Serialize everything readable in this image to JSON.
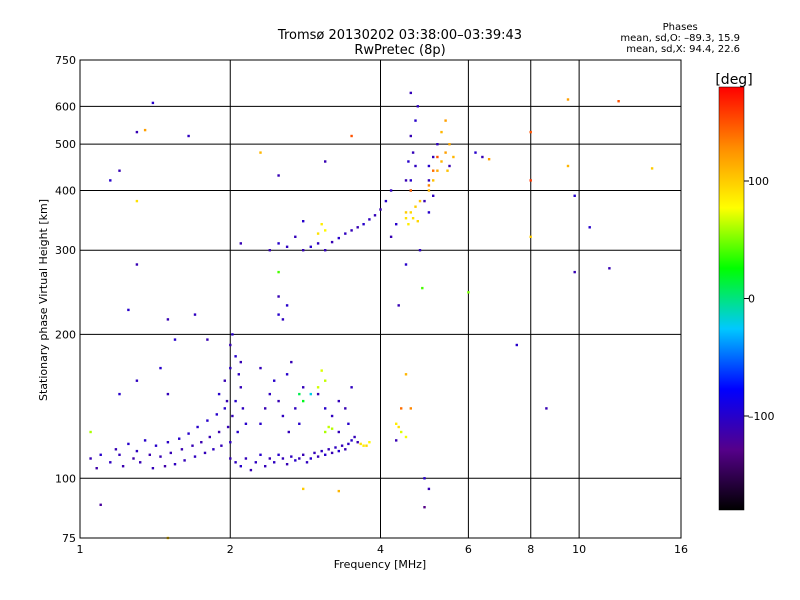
{
  "header": {
    "title_line1": "Tromsø 20130202 03:38:00–03:39:43",
    "title_line2": "RwPretec (8p)"
  },
  "stats": {
    "heading": "Phases",
    "line_o": "mean, sd,O: –89.3, 15.9",
    "line_x": "mean, sd,X:  94.4, 22.6"
  },
  "colorbar": {
    "label": "[deg]",
    "ticks": [
      {
        "value": 100,
        "label": "100"
      },
      {
        "value": 0,
        "label": "0"
      },
      {
        "value": -100,
        "label": "–100"
      }
    ],
    "range": [
      -180,
      180
    ],
    "colors": [
      "#000000",
      "#55008a",
      "#0000ff",
      "#00c8ff",
      "#00ff00",
      "#ffff00",
      "#ff8c00",
      "#ff0000"
    ]
  },
  "chart_data": {
    "type": "scatter",
    "xlabel": "Frequency [MHz]",
    "ylabel": "Stationary phase Virtual Height [km]",
    "xscale": "log",
    "yscale": "log",
    "xlim": [
      1,
      16
    ],
    "ylim": [
      75,
      750
    ],
    "xticks": [
      {
        "value": 1,
        "label": "1"
      },
      {
        "value": 2,
        "label": "2"
      },
      {
        "value": 4,
        "label": "4"
      },
      {
        "value": 6,
        "label": "6"
      },
      {
        "value": 8,
        "label": "8"
      },
      {
        "value": 10,
        "label": "10"
      },
      {
        "value": 16,
        "label": "16"
      }
    ],
    "yticks": [
      {
        "value": 75,
        "label": "75"
      },
      {
        "value": 100,
        "label": "100"
      },
      {
        "value": 200,
        "label": "200"
      },
      {
        "value": 300,
        "label": "300"
      },
      {
        "value": 400,
        "label": "400"
      },
      {
        "value": 500,
        "label": "500"
      },
      {
        "value": 600,
        "label": "600"
      },
      {
        "value": 750,
        "label": "750"
      }
    ],
    "xgrid": [
      2,
      4,
      6,
      8,
      10
    ],
    "ygrid": [
      100,
      200,
      300,
      400,
      500,
      600
    ],
    "grid": true,
    "color_scale": "phase [deg]",
    "points": [
      [
        1.05,
        110,
        -110
      ],
      [
        1.08,
        105,
        -115
      ],
      [
        1.1,
        88,
        -120
      ],
      [
        1.05,
        125,
        60
      ],
      [
        1.1,
        112,
        -100
      ],
      [
        1.15,
        108,
        -105
      ],
      [
        1.18,
        115,
        -110
      ],
      [
        1.2,
        112,
        -108
      ],
      [
        1.22,
        106,
        -112
      ],
      [
        1.25,
        118,
        -100
      ],
      [
        1.28,
        110,
        -115
      ],
      [
        1.3,
        114,
        -105
      ],
      [
        1.32,
        108,
        -110
      ],
      [
        1.35,
        120,
        -100
      ],
      [
        1.38,
        112,
        -112
      ],
      [
        1.4,
        105,
        -108
      ],
      [
        1.42,
        117,
        -100
      ],
      [
        1.45,
        111,
        -110
      ],
      [
        1.48,
        106,
        -115
      ],
      [
        1.5,
        119,
        -102
      ],
      [
        1.52,
        113,
        -110
      ],
      [
        1.55,
        107,
        -105
      ],
      [
        1.58,
        121,
        -100
      ],
      [
        1.6,
        115,
        -112
      ],
      [
        1.62,
        109,
        -108
      ],
      [
        1.65,
        124,
        -100
      ],
      [
        1.68,
        117,
        -110
      ],
      [
        1.7,
        111,
        -105
      ],
      [
        1.72,
        128,
        -100
      ],
      [
        1.75,
        119,
        -112
      ],
      [
        1.78,
        113,
        -108
      ],
      [
        1.8,
        132,
        -100
      ],
      [
        1.82,
        122,
        -110
      ],
      [
        1.85,
        115,
        -105
      ],
      [
        1.88,
        136,
        -100
      ],
      [
        1.9,
        125,
        -112
      ],
      [
        1.92,
        117,
        -108
      ],
      [
        1.95,
        140,
        -100
      ],
      [
        1.98,
        128,
        -110
      ],
      [
        2.0,
        119,
        -105
      ],
      [
        1.9,
        150,
        -100
      ],
      [
        1.95,
        160,
        -110
      ],
      [
        2.0,
        170,
        -105
      ],
      [
        2.05,
        180,
        -100
      ],
      [
        2.0,
        190,
        -110
      ],
      [
        2.05,
        145,
        -100
      ],
      [
        2.1,
        155,
        -108
      ],
      [
        2.08,
        165,
        -105
      ],
      [
        2.02,
        200,
        -100
      ],
      [
        2.1,
        175,
        -110
      ],
      [
        2.12,
        140,
        -105
      ],
      [
        2.15,
        130,
        -100
      ],
      [
        2.02,
        135,
        -108
      ],
      [
        1.97,
        145,
        -110
      ],
      [
        2.07,
        125,
        -100
      ],
      [
        2.0,
        110,
        -110
      ],
      [
        2.05,
        108,
        -105
      ],
      [
        2.1,
        106,
        -100
      ],
      [
        2.15,
        110,
        -108
      ],
      [
        2.2,
        104,
        -110
      ],
      [
        2.25,
        108,
        -105
      ],
      [
        2.3,
        112,
        -100
      ],
      [
        2.35,
        106,
        -108
      ],
      [
        2.4,
        110,
        -110
      ],
      [
        2.45,
        108,
        -105
      ],
      [
        2.5,
        112,
        -100
      ],
      [
        2.55,
        110,
        -108
      ],
      [
        2.6,
        107,
        -110
      ],
      [
        2.65,
        111,
        -105
      ],
      [
        2.7,
        109,
        -100
      ],
      [
        2.75,
        110,
        -108
      ],
      [
        2.8,
        112,
        -110
      ],
      [
        2.85,
        108,
        -105
      ],
      [
        2.9,
        110,
        -100
      ],
      [
        2.95,
        113,
        -108
      ],
      [
        3.0,
        111,
        -110
      ],
      [
        3.05,
        114,
        -105
      ],
      [
        3.1,
        112,
        -100
      ],
      [
        3.15,
        115,
        -108
      ],
      [
        3.2,
        113,
        -110
      ],
      [
        3.25,
        116,
        -105
      ],
      [
        3.3,
        114,
        -100
      ],
      [
        3.35,
        117,
        -108
      ],
      [
        3.4,
        115,
        -110
      ],
      [
        3.45,
        118,
        -105
      ],
      [
        3.5,
        120,
        -100
      ],
      [
        3.55,
        122,
        -108
      ],
      [
        3.6,
        119,
        -110
      ],
      [
        2.3,
        130,
        -100
      ],
      [
        2.35,
        140,
        -110
      ],
      [
        2.4,
        150,
        -105
      ],
      [
        2.45,
        160,
        -100
      ],
      [
        2.3,
        170,
        -108
      ],
      [
        2.5,
        145,
        -110
      ],
      [
        2.55,
        135,
        -105
      ],
      [
        2.6,
        165,
        -100
      ],
      [
        2.62,
        125,
        -108
      ],
      [
        2.65,
        175,
        -110
      ],
      [
        2.7,
        140,
        -105
      ],
      [
        2.75,
        130,
        -100
      ],
      [
        2.8,
        155,
        -108
      ],
      [
        3.0,
        150,
        -110
      ],
      [
        3.1,
        140,
        -100
      ],
      [
        3.2,
        135,
        -105
      ],
      [
        3.3,
        145,
        -108
      ],
      [
        3.4,
        140,
        -110
      ],
      [
        3.45,
        130,
        -100
      ],
      [
        3.5,
        155,
        -105
      ],
      [
        3.3,
        125,
        -108
      ],
      [
        3.1,
        125,
        60
      ],
      [
        3.15,
        128,
        65
      ],
      [
        3.2,
        127,
        62
      ],
      [
        3.05,
        168,
        70
      ],
      [
        3.1,
        160,
        65
      ],
      [
        3.0,
        155,
        68
      ],
      [
        3.65,
        118,
        90
      ],
      [
        3.7,
        117,
        85
      ],
      [
        3.75,
        117,
        95
      ],
      [
        3.8,
        119,
        80
      ],
      [
        4.3,
        130,
        85
      ],
      [
        4.35,
        128,
        90
      ],
      [
        4.4,
        125,
        70
      ],
      [
        4.5,
        122,
        75
      ],
      [
        2.8,
        145,
        20
      ],
      [
        2.75,
        150,
        10
      ],
      [
        2.9,
        150,
        -20
      ],
      [
        2.5,
        240,
        -110
      ],
      [
        2.5,
        220,
        -100
      ],
      [
        2.55,
        215,
        -105
      ],
      [
        2.6,
        230,
        -100
      ],
      [
        2.4,
        300,
        -110
      ],
      [
        2.5,
        310,
        -100
      ],
      [
        2.6,
        305,
        -105
      ],
      [
        2.7,
        320,
        -108
      ],
      [
        2.8,
        300,
        -110
      ],
      [
        2.9,
        305,
        -100
      ],
      [
        3.0,
        310,
        -105
      ],
      [
        3.1,
        300,
        -108
      ],
      [
        3.2,
        312,
        -110
      ],
      [
        3.3,
        318,
        -100
      ],
      [
        3.4,
        325,
        -105
      ],
      [
        3.5,
        330,
        -108
      ],
      [
        3.6,
        335,
        -110
      ],
      [
        3.7,
        340,
        -100
      ],
      [
        3.8,
        348,
        -105
      ],
      [
        3.9,
        355,
        -108
      ],
      [
        4.0,
        365,
        -110
      ],
      [
        4.1,
        380,
        -100
      ],
      [
        4.2,
        400,
        -105
      ],
      [
        3.05,
        340,
        85
      ],
      [
        3.1,
        330,
        80
      ],
      [
        3.0,
        325,
        90
      ],
      [
        4.5,
        350,
        90
      ],
      [
        4.6,
        360,
        95
      ],
      [
        4.7,
        370,
        100
      ],
      [
        4.8,
        380,
        105
      ],
      [
        4.55,
        340,
        85
      ],
      [
        4.65,
        350,
        90
      ],
      [
        4.75,
        345,
        95
      ],
      [
        4.5,
        360,
        100
      ],
      [
        5.0,
        400,
        110
      ],
      [
        5.1,
        420,
        105
      ],
      [
        5.2,
        440,
        115
      ],
      [
        5.3,
        460,
        110
      ],
      [
        5.4,
        480,
        120
      ],
      [
        5.5,
        500,
        115
      ],
      [
        5.3,
        530,
        110
      ],
      [
        5.4,
        560,
        120
      ],
      [
        5.45,
        440,
        105
      ],
      [
        5.6,
        470,
        110
      ],
      [
        4.6,
        400,
        -110
      ],
      [
        4.6,
        420,
        -100
      ],
      [
        4.7,
        450,
        -105
      ],
      [
        4.65,
        480,
        -108
      ],
      [
        4.6,
        520,
        -110
      ],
      [
        4.7,
        560,
        -100
      ],
      [
        4.75,
        600,
        -105
      ],
      [
        4.6,
        640,
        -108
      ],
      [
        4.5,
        420,
        -110
      ],
      [
        4.55,
        460,
        -100
      ],
      [
        5.0,
        450,
        -100
      ],
      [
        5.1,
        470,
        -110
      ],
      [
        5.2,
        500,
        -105
      ],
      [
        5.0,
        420,
        -108
      ],
      [
        5.5,
        450,
        -110
      ],
      [
        4.9,
        380,
        -110
      ],
      [
        5.0,
        360,
        -100
      ],
      [
        5.1,
        390,
        -105
      ],
      [
        5.0,
        410,
        130
      ],
      [
        5.1,
        440,
        140
      ],
      [
        5.2,
        470,
        150
      ],
      [
        4.6,
        400,
        140
      ],
      [
        6.2,
        480,
        -100
      ],
      [
        6.4,
        470,
        -110
      ],
      [
        6.6,
        465,
        120
      ],
      [
        1.2,
        440,
        -110
      ],
      [
        1.15,
        420,
        -100
      ],
      [
        1.3,
        380,
        90
      ],
      [
        1.4,
        610,
        -100
      ],
      [
        1.3,
        530,
        -110
      ],
      [
        1.65,
        520,
        -105
      ],
      [
        1.35,
        535,
        120
      ],
      [
        2.5,
        430,
        -110
      ],
      [
        3.5,
        520,
        150
      ],
      [
        3.1,
        460,
        -110
      ],
      [
        2.8,
        345,
        -100
      ],
      [
        2.1,
        310,
        -110
      ],
      [
        2.5,
        270,
        40
      ],
      [
        2.3,
        480,
        110
      ],
      [
        1.25,
        225,
        -100
      ],
      [
        1.3,
        280,
        -110
      ],
      [
        1.3,
        160,
        -105
      ],
      [
        1.2,
        150,
        -100
      ],
      [
        1.5,
        215,
        -110
      ],
      [
        1.55,
        195,
        -100
      ],
      [
        1.7,
        220,
        -105
      ],
      [
        1.8,
        195,
        -110
      ],
      [
        1.45,
        170,
        -100
      ],
      [
        1.5,
        150,
        -108
      ],
      [
        4.3,
        340,
        -100
      ],
      [
        4.2,
        320,
        -110
      ],
      [
        4.8,
        300,
        -105
      ],
      [
        4.85,
        250,
        40
      ],
      [
        4.5,
        280,
        -100
      ],
      [
        4.35,
        230,
        -110
      ],
      [
        4.5,
        165,
        110
      ],
      [
        4.4,
        140,
        140
      ],
      [
        4.6,
        140,
        130
      ],
      [
        4.3,
        120,
        -110
      ],
      [
        4.9,
        100,
        -100
      ],
      [
        5.0,
        95,
        -110
      ],
      [
        4.9,
        87,
        -130
      ],
      [
        3.3,
        94,
        110
      ],
      [
        2.8,
        95,
        100
      ],
      [
        1.5,
        75,
        100
      ],
      [
        6.0,
        245,
        50
      ],
      [
        7.5,
        190,
        -100
      ],
      [
        8.0,
        530,
        150
      ],
      [
        8.0,
        420,
        160
      ],
      [
        8.0,
        320,
        100
      ],
      [
        9.5,
        620,
        120
      ],
      [
        9.5,
        450,
        110
      ],
      [
        9.8,
        390,
        -100
      ],
      [
        9.8,
        270,
        -110
      ],
      [
        10.5,
        335,
        -100
      ],
      [
        11.5,
        275,
        -110
      ],
      [
        12.0,
        615,
        150
      ],
      [
        14.0,
        445,
        100
      ],
      [
        8.6,
        140,
        -110
      ]
    ]
  }
}
